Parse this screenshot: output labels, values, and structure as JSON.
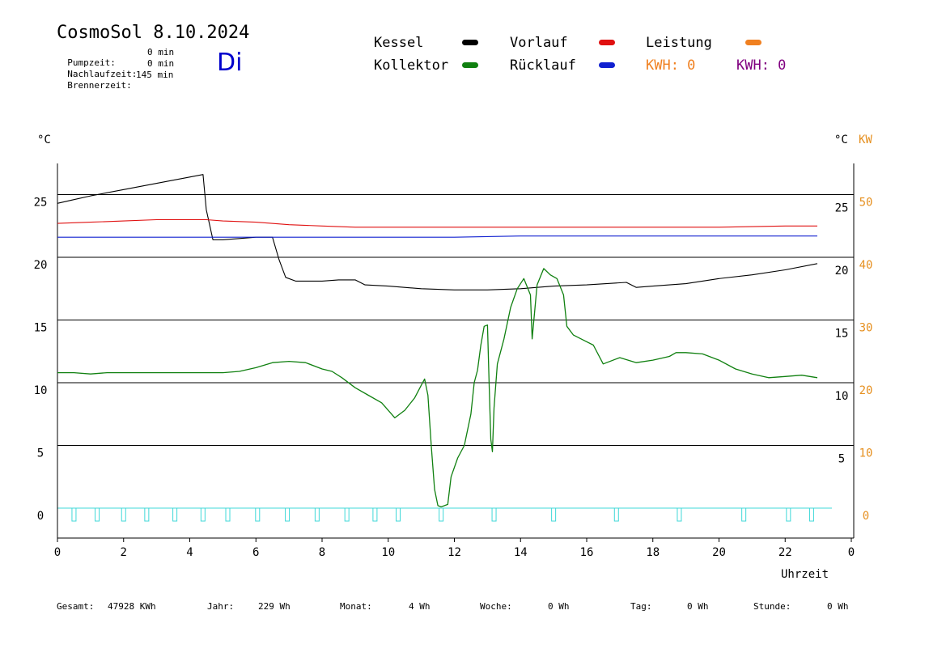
{
  "header": {
    "title": "CosmoSol 8.10.2024",
    "day": "Di",
    "stats": [
      {
        "label": "Pumpzeit:",
        "value": "0 min"
      },
      {
        "label": "Nachlaufzeit:",
        "value": "0 min"
      },
      {
        "label": "Brennerzeit:",
        "value": "145 min"
      }
    ]
  },
  "legend": {
    "kessel": {
      "label": "Kessel",
      "color": "#000000"
    },
    "vorlauf": {
      "label": "Vorlauf",
      "color": "#e01010"
    },
    "leistung": {
      "label": "Leistung",
      "color": "#f08020"
    },
    "kollektor": {
      "label": "Kollektor",
      "color": "#108010"
    },
    "ruecklauf": {
      "label": "Rücklauf",
      "color": "#1020d0"
    },
    "kwh_orange": {
      "label": "KWH: 0",
      "color": "#f08020"
    },
    "kwh_purple": {
      "label": "KWH: 0",
      "color": "#800080"
    }
  },
  "footer": [
    {
      "label": "Gesamt:",
      "value": "47928 KWh"
    },
    {
      "label": "Jahr:",
      "value": "229 Wh"
    },
    {
      "label": "Monat:",
      "value": "4 Wh"
    },
    {
      "label": "Woche:",
      "value": "0 Wh"
    },
    {
      "label": "Tag:",
      "value": "0 Wh"
    },
    {
      "label": "Stunde:",
      "value": "0 Wh"
    }
  ],
  "chart_data": {
    "type": "line",
    "xlabel": "Uhrzeit",
    "ylabel_left": "°C",
    "ylabel_right": "°C",
    "ylabel_right2": "KW",
    "xlim": [
      0,
      24
    ],
    "ylim": [
      -2,
      27
    ],
    "x_ticks": [
      "0",
      "2",
      "4",
      "6",
      "8",
      "10",
      "12",
      "14",
      "16",
      "18",
      "20",
      "22",
      "0"
    ],
    "y_ticks_left": [
      "0",
      "5",
      "10",
      "15",
      "20",
      "25"
    ],
    "y_ticks_right": [
      "5",
      "10",
      "15",
      "20",
      "25"
    ],
    "y_ticks_right_kw": [
      "0",
      "10",
      "20",
      "30",
      "40",
      "50"
    ],
    "grid": "horizontal",
    "series": [
      {
        "name": "Kessel",
        "color": "#000000",
        "points": [
          [
            0,
            24.3
          ],
          [
            0.5,
            24.6
          ],
          [
            1,
            24.9
          ],
          [
            2,
            25.4
          ],
          [
            3,
            25.9
          ],
          [
            4,
            26.4
          ],
          [
            4.4,
            26.6
          ],
          [
            4.5,
            23.8
          ],
          [
            4.7,
            21.4
          ],
          [
            5,
            21.4
          ],
          [
            5.5,
            21.5
          ],
          [
            6,
            21.6
          ],
          [
            6.5,
            21.6
          ],
          [
            6.7,
            19.8
          ],
          [
            6.9,
            18.4
          ],
          [
            7.2,
            18.1
          ],
          [
            8,
            18.1
          ],
          [
            8.5,
            18.2
          ],
          [
            9,
            18.2
          ],
          [
            9.3,
            17.8
          ],
          [
            10,
            17.7
          ],
          [
            11,
            17.5
          ],
          [
            12,
            17.4
          ],
          [
            13,
            17.4
          ],
          [
            14,
            17.5
          ],
          [
            15,
            17.7
          ],
          [
            16,
            17.8
          ],
          [
            17.2,
            18.0
          ],
          [
            17.5,
            17.6
          ],
          [
            18,
            17.7
          ],
          [
            19,
            17.9
          ],
          [
            20,
            18.3
          ],
          [
            21,
            18.6
          ],
          [
            22,
            19.0
          ],
          [
            23,
            19.5
          ]
        ]
      },
      {
        "name": "Vorlauf",
        "color": "#e01010",
        "points": [
          [
            0,
            22.7
          ],
          [
            1,
            22.8
          ],
          [
            2,
            22.9
          ],
          [
            3,
            23.0
          ],
          [
            4,
            23.0
          ],
          [
            4.5,
            23.0
          ],
          [
            5,
            22.9
          ],
          [
            6,
            22.8
          ],
          [
            7,
            22.6
          ],
          [
            8,
            22.5
          ],
          [
            9,
            22.4
          ],
          [
            10,
            22.4
          ],
          [
            11,
            22.4
          ],
          [
            12,
            22.4
          ],
          [
            14,
            22.4
          ],
          [
            16,
            22.4
          ],
          [
            18,
            22.4
          ],
          [
            20,
            22.4
          ],
          [
            22,
            22.5
          ],
          [
            23,
            22.5
          ]
        ]
      },
      {
        "name": "Rücklauf",
        "color": "#1020d0",
        "points": [
          [
            0,
            21.6
          ],
          [
            2,
            21.6
          ],
          [
            4,
            21.6
          ],
          [
            6,
            21.6
          ],
          [
            8,
            21.6
          ],
          [
            10,
            21.6
          ],
          [
            12,
            21.6
          ],
          [
            14,
            21.7
          ],
          [
            16,
            21.7
          ],
          [
            18,
            21.7
          ],
          [
            20,
            21.7
          ],
          [
            22,
            21.7
          ],
          [
            23,
            21.7
          ]
        ]
      },
      {
        "name": "Kollektor",
        "color": "#108010",
        "points": [
          [
            0,
            10.8
          ],
          [
            0.5,
            10.8
          ],
          [
            1,
            10.7
          ],
          [
            1.5,
            10.8
          ],
          [
            2,
            10.8
          ],
          [
            3,
            10.8
          ],
          [
            4,
            10.8
          ],
          [
            5,
            10.8
          ],
          [
            5.5,
            10.9
          ],
          [
            6,
            11.2
          ],
          [
            6.5,
            11.6
          ],
          [
            7,
            11.7
          ],
          [
            7.5,
            11.6
          ],
          [
            8,
            11.1
          ],
          [
            8.3,
            10.9
          ],
          [
            8.6,
            10.4
          ],
          [
            9,
            9.6
          ],
          [
            9.4,
            9.0
          ],
          [
            9.8,
            8.4
          ],
          [
            10.2,
            7.2
          ],
          [
            10.5,
            7.8
          ],
          [
            10.8,
            8.8
          ],
          [
            11,
            9.8
          ],
          [
            11.1,
            10.3
          ],
          [
            11.2,
            9.0
          ],
          [
            11.3,
            5.0
          ],
          [
            11.4,
            1.5
          ],
          [
            11.5,
            0.2
          ],
          [
            11.6,
            0.1
          ],
          [
            11.8,
            0.3
          ],
          [
            11.9,
            2.5
          ],
          [
            12.1,
            4.0
          ],
          [
            12.3,
            5.0
          ],
          [
            12.5,
            7.5
          ],
          [
            12.6,
            10.0
          ],
          [
            12.7,
            11.0
          ],
          [
            12.8,
            13.0
          ],
          [
            12.9,
            14.5
          ],
          [
            13.0,
            14.6
          ],
          [
            13.05,
            10.0
          ],
          [
            13.1,
            5.5
          ],
          [
            13.15,
            4.5
          ],
          [
            13.2,
            8.0
          ],
          [
            13.3,
            11.5
          ],
          [
            13.5,
            13.5
          ],
          [
            13.7,
            16.0
          ],
          [
            13.9,
            17.5
          ],
          [
            14.1,
            18.3
          ],
          [
            14.3,
            17.0
          ],
          [
            14.35,
            13.5
          ],
          [
            14.5,
            17.8
          ],
          [
            14.7,
            19.1
          ],
          [
            14.9,
            18.6
          ],
          [
            15.1,
            18.3
          ],
          [
            15.3,
            17.0
          ],
          [
            15.4,
            14.5
          ],
          [
            15.6,
            13.8
          ],
          [
            15.9,
            13.4
          ],
          [
            16.2,
            13.0
          ],
          [
            16.5,
            11.5
          ],
          [
            17,
            12.0
          ],
          [
            17.5,
            11.6
          ],
          [
            18,
            11.8
          ],
          [
            18.5,
            12.1
          ],
          [
            18.7,
            12.4
          ],
          [
            19,
            12.4
          ],
          [
            19.5,
            12.3
          ],
          [
            20,
            11.8
          ],
          [
            20.5,
            11.1
          ],
          [
            21,
            10.7
          ],
          [
            21.5,
            10.4
          ],
          [
            22,
            10.5
          ],
          [
            22.5,
            10.6
          ],
          [
            23,
            10.4
          ]
        ]
      }
    ],
    "burner_pulses_hours": [
      0.5,
      1.2,
      2.0,
      2.7,
      3.55,
      4.4,
      5.15,
      6.05,
      6.95,
      7.85,
      8.75,
      9.6,
      10.3,
      11.6,
      13.2,
      15.0,
      16.9,
      18.8,
      20.75,
      22.1,
      22.8
    ]
  }
}
